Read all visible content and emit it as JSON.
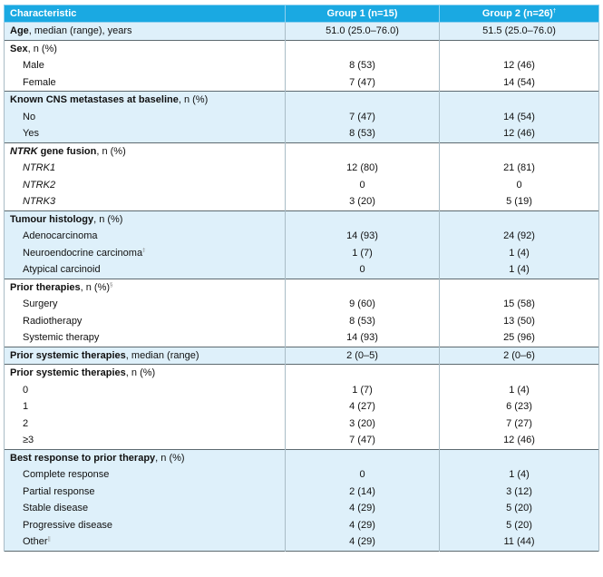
{
  "header": {
    "col1": "Characteristic",
    "col2": "Group 1 (n=15)",
    "col3": "Group 2 (n=26)",
    "col3_mark": "†"
  },
  "age": {
    "label_bold": "Age",
    "label_rest": ", median (range), years",
    "g1": "51.0 (25.0–76.0)",
    "g2": "51.5 (25.0–76.0)"
  },
  "sex": {
    "label_bold": "Sex",
    "label_rest": ", n (%)",
    "rows": [
      {
        "label": "Male",
        "g1": "8 (53)",
        "g2": "12 (46)"
      },
      {
        "label": "Female",
        "g1": "7 (47)",
        "g2": "14 (54)"
      }
    ]
  },
  "cns": {
    "label_bold": "Known CNS metastases at baseline",
    "label_rest": ", n (%)",
    "rows": [
      {
        "label": "No",
        "g1": "7 (47)",
        "g2": "14 (54)"
      },
      {
        "label": "Yes",
        "g1": "8 (53)",
        "g2": "12 (46)"
      }
    ]
  },
  "fusion": {
    "label_italic": "NTRK",
    "label_bold": " gene fusion",
    "label_rest": ", n (%)",
    "rows": [
      {
        "label": "NTRK1",
        "g1": "12 (80)",
        "g2": "21 (81)"
      },
      {
        "label": "NTRK2",
        "g1": "0",
        "g2": "0"
      },
      {
        "label": "NTRK3",
        "g1": "3 (20)",
        "g2": "5 (19)"
      }
    ]
  },
  "histology": {
    "label_bold": "Tumour histology",
    "label_rest": ", n (%)",
    "rows": [
      {
        "label": "Adenocarcinoma",
        "g1": "14 (93)",
        "g2": "24 (92)"
      },
      {
        "label": "Neuroendocrine carcinoma",
        "mark": "‡",
        "g1": "1 (7)",
        "g2": "1 (4)"
      },
      {
        "label": "Atypical carcinoid",
        "g1": "0",
        "g2": "1 (4)"
      }
    ]
  },
  "prior_therapies": {
    "label_bold": "Prior therapies",
    "label_rest": ", n (%)",
    "mark": "§",
    "rows": [
      {
        "label": "Surgery",
        "g1": "9 (60)",
        "g2": "15 (58)"
      },
      {
        "label": "Radiotherapy",
        "g1": "8 (53)",
        "g2": "13 (50)"
      },
      {
        "label": "Systemic therapy",
        "g1": "14 (93)",
        "g2": "25 (96)"
      }
    ]
  },
  "prior_systemic_median": {
    "label_bold": "Prior systemic therapies",
    "label_rest": ", median (range)",
    "g1": "2 (0–5)",
    "g2": "2 (0–6)"
  },
  "prior_systemic_n": {
    "label_bold": "Prior systemic therapies",
    "label_rest": ", n (%)",
    "rows": [
      {
        "label": "0",
        "g1": "1 (7)",
        "g2": "1 (4)"
      },
      {
        "label": "1",
        "g1": "4 (27)",
        "g2": "6 (23)"
      },
      {
        "label": "2",
        "g1": "3 (20)",
        "g2": "7 (27)"
      },
      {
        "label": "≥3",
        "g1": "7 (47)",
        "g2": "12 (46)"
      }
    ]
  },
  "best_response": {
    "label_bold": "Best response to prior therapy",
    "label_rest": ", n (%)",
    "rows": [
      {
        "label": "Complete response",
        "g1": "0",
        "g2": "1 (4)"
      },
      {
        "label": "Partial response",
        "g1": "2 (14)",
        "g2": "3 (12)"
      },
      {
        "label": "Stable disease",
        "g1": "4 (29)",
        "g2": "5 (20)"
      },
      {
        "label": "Progressive disease",
        "g1": "4 (29)",
        "g2": "5 (20)"
      },
      {
        "label": "Other",
        "mark": "||",
        "g1": "4 (29)",
        "g2": "11 (44)"
      }
    ]
  }
}
